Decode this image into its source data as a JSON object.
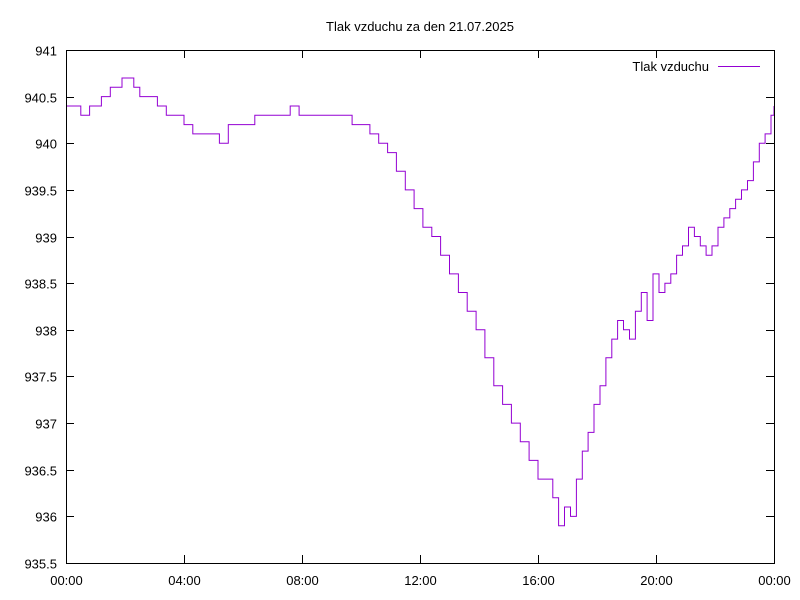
{
  "chart_data": {
    "type": "line",
    "title": "Tlak vzduchu za den 21.07.2025",
    "xlabel": "",
    "ylabel": "",
    "xlim": [
      0,
      24
    ],
    "ylim": [
      935.5,
      941
    ],
    "x_ticks": [
      {
        "value": 0,
        "label": "00:00"
      },
      {
        "value": 4,
        "label": "04:00"
      },
      {
        "value": 8,
        "label": "08:00"
      },
      {
        "value": 12,
        "label": "12:00"
      },
      {
        "value": 16,
        "label": "16:00"
      },
      {
        "value": 20,
        "label": "20:00"
      },
      {
        "value": 24,
        "label": "00:00"
      }
    ],
    "y_ticks": [
      {
        "value": 935.5,
        "label": "935.5"
      },
      {
        "value": 936,
        "label": "936"
      },
      {
        "value": 936.5,
        "label": "936.5"
      },
      {
        "value": 937,
        "label": "937"
      },
      {
        "value": 937.5,
        "label": "937.5"
      },
      {
        "value": 938,
        "label": "938"
      },
      {
        "value": 938.5,
        "label": "938.5"
      },
      {
        "value": 939,
        "label": "939"
      },
      {
        "value": 939.5,
        "label": "939.5"
      },
      {
        "value": 940,
        "label": "940"
      },
      {
        "value": 940.5,
        "label": "940.5"
      },
      {
        "value": 941,
        "label": "941"
      }
    ],
    "grid": false,
    "legend_position": "top-right",
    "series": [
      {
        "name": "Tlak vzduchu",
        "color": "#9400d3",
        "x": [
          0,
          0.2,
          0.5,
          0.8,
          1.0,
          1.2,
          1.5,
          1.7,
          1.9,
          2.1,
          2.3,
          2.5,
          2.8,
          3.1,
          3.4,
          3.7,
          4.0,
          4.3,
          4.6,
          4.9,
          5.2,
          5.5,
          5.8,
          6.1,
          6.4,
          6.7,
          7.0,
          7.3,
          7.6,
          7.9,
          8.2,
          8.5,
          8.8,
          9.1,
          9.4,
          9.7,
          10.0,
          10.3,
          10.6,
          10.9,
          11.2,
          11.5,
          11.8,
          12.1,
          12.4,
          12.7,
          13.0,
          13.3,
          13.6,
          13.9,
          14.2,
          14.5,
          14.8,
          15.1,
          15.4,
          15.7,
          16.0,
          16.3,
          16.5,
          16.7,
          16.9,
          17.1,
          17.3,
          17.5,
          17.7,
          17.9,
          18.1,
          18.3,
          18.5,
          18.7,
          18.9,
          19.1,
          19.3,
          19.5,
          19.7,
          19.9,
          20.1,
          20.3,
          20.5,
          20.7,
          20.9,
          21.1,
          21.3,
          21.5,
          21.7,
          21.9,
          22.1,
          22.3,
          22.5,
          22.7,
          22.9,
          23.1,
          23.3,
          23.5,
          23.7,
          23.9,
          24.0
        ],
        "values": [
          940.4,
          940.4,
          940.3,
          940.4,
          940.4,
          940.5,
          940.6,
          940.6,
          940.7,
          940.7,
          940.6,
          940.5,
          940.5,
          940.4,
          940.3,
          940.3,
          940.2,
          940.1,
          940.1,
          940.1,
          940.0,
          940.2,
          940.2,
          940.2,
          940.3,
          940.3,
          940.3,
          940.3,
          940.4,
          940.3,
          940.3,
          940.3,
          940.3,
          940.3,
          940.3,
          940.2,
          940.2,
          940.1,
          940.0,
          939.9,
          939.7,
          939.5,
          939.3,
          939.1,
          939.0,
          938.8,
          938.6,
          938.4,
          938.2,
          938.0,
          937.7,
          937.4,
          937.2,
          937.0,
          936.8,
          936.6,
          936.4,
          936.4,
          936.2,
          935.9,
          936.1,
          936.0,
          936.4,
          936.7,
          936.9,
          937.2,
          937.4,
          937.7,
          937.9,
          938.1,
          938.0,
          937.9,
          938.2,
          938.4,
          938.1,
          938.6,
          938.4,
          938.5,
          938.6,
          938.8,
          938.9,
          939.1,
          939.0,
          938.9,
          938.8,
          938.9,
          939.1,
          939.2,
          939.3,
          939.4,
          939.5,
          939.6,
          939.8,
          940.0,
          940.1,
          940.3,
          940.4
        ]
      }
    ]
  }
}
